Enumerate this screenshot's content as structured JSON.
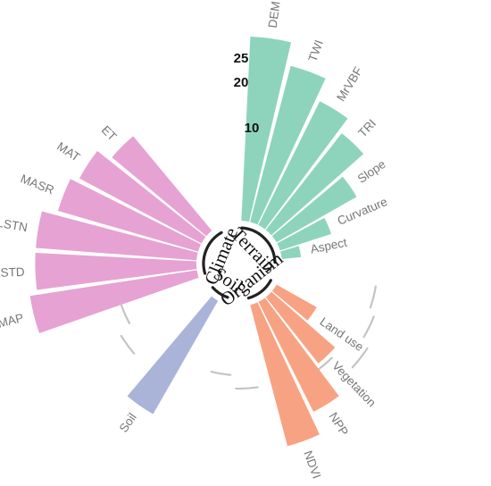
{
  "chart_data": {
    "type": "bar",
    "subtype": "circular-grouped",
    "ticks": [
      "25",
      "20",
      "10"
    ],
    "groups": [
      {
        "name": "Terrain",
        "color": "#8ed4bd",
        "categories": [
          "DEM",
          "TWI",
          "MrVBF",
          "TRI",
          "Slope",
          "Curvature",
          "Aspect"
        ],
        "values": [
          24,
          21,
          18,
          16,
          12,
          7,
          2.5
        ]
      },
      {
        "name": "Organism",
        "color": "#f7a383",
        "categories": [
          "NDVI",
          "NPP",
          "Vegetation",
          "Land use"
        ],
        "values": [
          19,
          16,
          11,
          6
        ]
      },
      {
        "name": "Soil",
        "color": "#a9b4d8",
        "categories": [
          "Soil"
        ],
        "values": [
          17
        ]
      },
      {
        "name": "Climate",
        "color": "#e6a2d2",
        "categories": [
          "MAP",
          "LSTD",
          "LSTN",
          "MASR",
          "MAT",
          "ET"
        ],
        "values": [
          22,
          21,
          21,
          19,
          18,
          16
        ]
      }
    ]
  }
}
